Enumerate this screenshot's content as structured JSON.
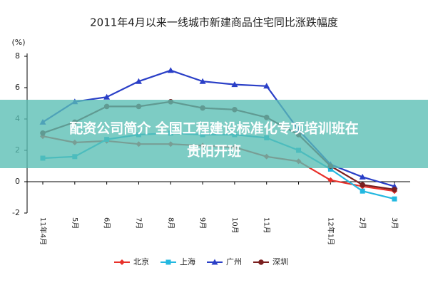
{
  "chart_data": {
    "type": "line",
    "title": "2011年4月以来一线城市新建商品住宅同比涨跌幅度",
    "y_label": "(%)",
    "categories": [
      "11年4月",
      "5月",
      "6月",
      "7月",
      "8月",
      "9月",
      "10月",
      "11月",
      null,
      "12年1月",
      "2月",
      "3月"
    ],
    "series": [
      {
        "name": "北京",
        "color": "#e8312b",
        "marker": "diamond",
        "values": [
          2.9,
          2.5,
          2.6,
          2.4,
          2.4,
          2.3,
          2.2,
          1.6,
          1.3,
          0.1,
          -0.3,
          -0.6
        ]
      },
      {
        "name": "上海",
        "color": "#23b8e0",
        "marker": "square",
        "values": [
          1.5,
          1.6,
          2.7,
          3.0,
          3.1,
          3.0,
          3.0,
          2.8,
          2.0,
          0.8,
          -0.6,
          -1.1
        ]
      },
      {
        "name": "广州",
        "color": "#2a3fc7",
        "marker": "triangle",
        "values": [
          3.8,
          5.1,
          5.4,
          6.4,
          7.1,
          6.4,
          6.2,
          6.1,
          3.3,
          1.1,
          0.3,
          -0.3
        ]
      },
      {
        "name": "深圳",
        "color": "#7a1f1f",
        "marker": "circle",
        "values": [
          3.1,
          3.8,
          4.8,
          4.8,
          5.1,
          4.7,
          4.6,
          4.1,
          3.0,
          1.0,
          -0.2,
          -0.5
        ]
      }
    ],
    "ylim": [
      -2,
      8
    ],
    "yticks": [
      -2,
      0,
      2,
      4,
      6,
      8
    ],
    "legend": "bottom"
  },
  "overlay": {
    "lines": [
      "配资公司简介 全国工程建设标准化专项培训班在",
      "贵阳开班"
    ]
  }
}
